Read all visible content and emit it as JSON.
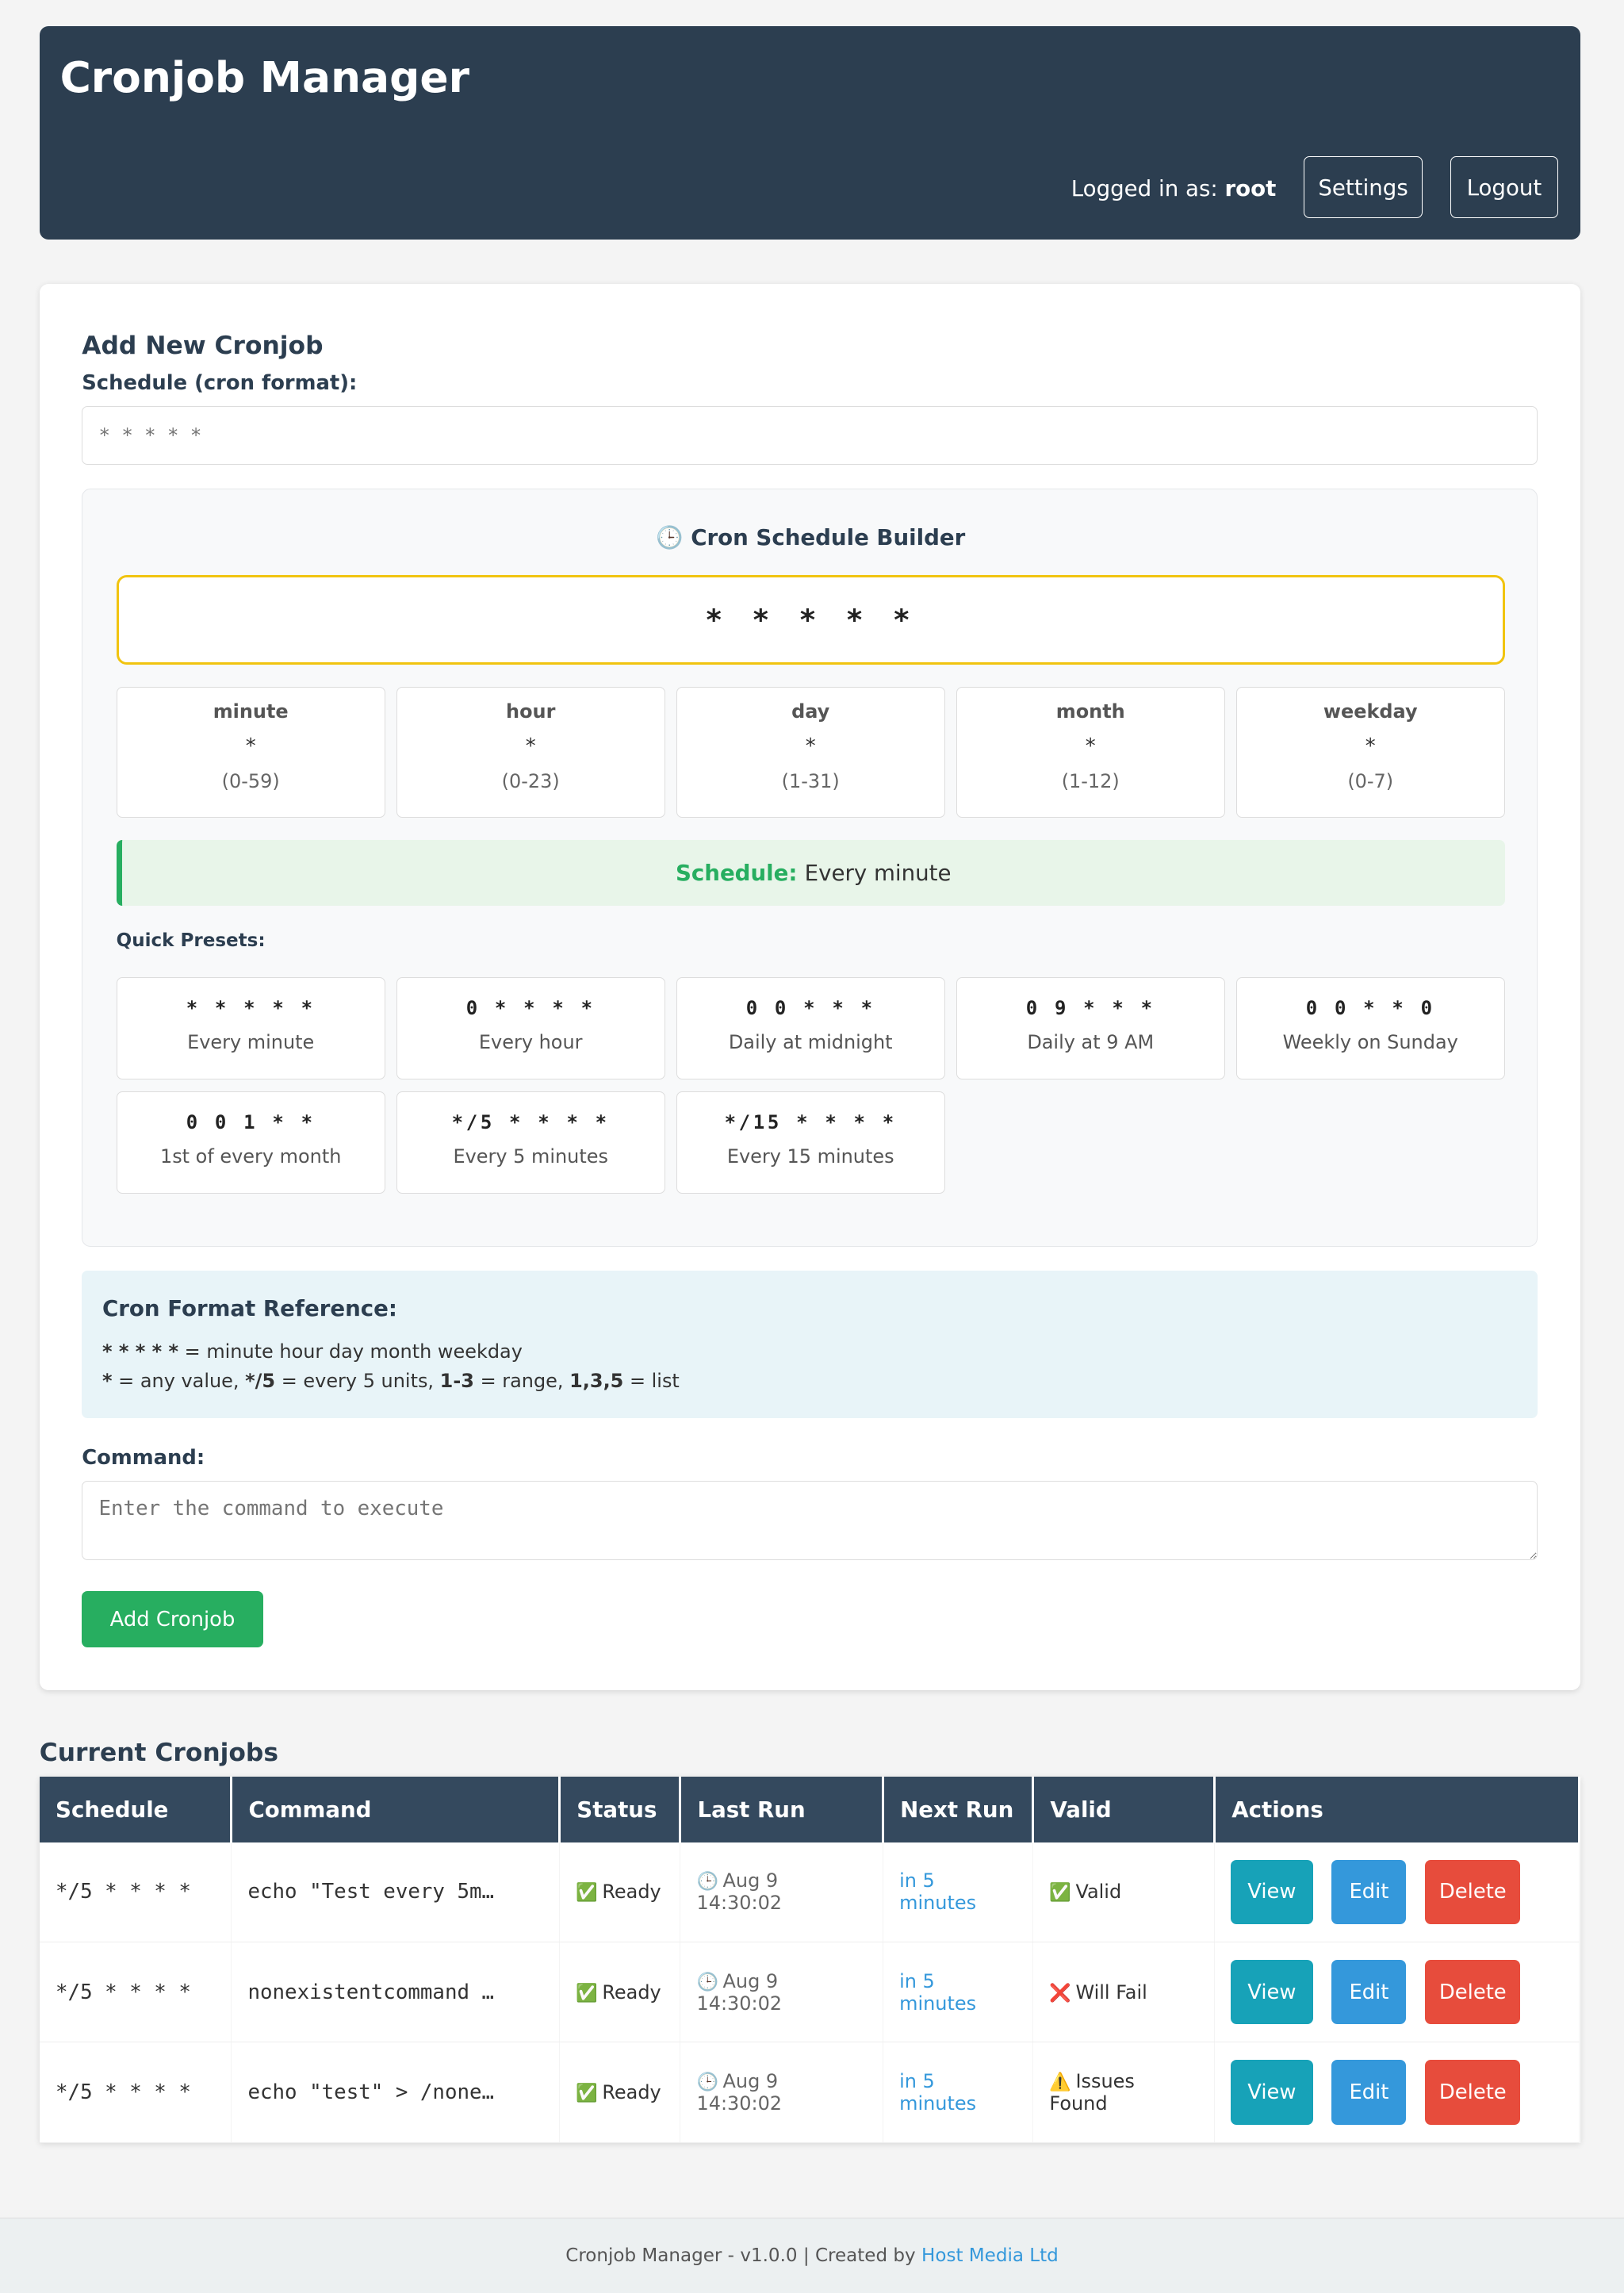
{
  "header": {
    "title": "Cronjob Manager",
    "logged_in_label": "Logged in as:",
    "username": "root",
    "settings": "Settings",
    "logout": "Logout"
  },
  "form": {
    "title": "Add New Cronjob",
    "schedule_label": "Schedule (cron format):",
    "schedule_placeholder": "* * * * *",
    "builder": {
      "icon": "clock-icon",
      "title": "Cron Schedule Builder",
      "expression": "* * * * *",
      "fields": [
        {
          "name": "minute",
          "value": "*",
          "range": "(0-59)"
        },
        {
          "name": "hour",
          "value": "*",
          "range": "(0-23)"
        },
        {
          "name": "day",
          "value": "*",
          "range": "(1-31)"
        },
        {
          "name": "month",
          "value": "*",
          "range": "(1-12)"
        },
        {
          "name": "weekday",
          "value": "*",
          "range": "(0-7)"
        }
      ],
      "schedule_label": "Schedule:",
      "schedule_text": "Every minute",
      "presets_label": "Quick Presets:",
      "presets": [
        {
          "cron": "* * * * *",
          "label": "Every minute"
        },
        {
          "cron": "0 * * * *",
          "label": "Every hour"
        },
        {
          "cron": "0 0 * * *",
          "label": "Daily at midnight"
        },
        {
          "cron": "0 9 * * *",
          "label": "Daily at 9 AM"
        },
        {
          "cron": "0 0 * * 0",
          "label": "Weekly on Sunday"
        },
        {
          "cron": "0 0 1 * *",
          "label": "1st of every month"
        },
        {
          "cron": "*/5 * * * *",
          "label": "Every 5 minutes"
        },
        {
          "cron": "*/15 * * * *",
          "label": "Every 15 minutes"
        }
      ]
    },
    "reference": {
      "title": "Cron Format Reference:",
      "line1_code": "* * * * *",
      "line1_text": " = minute hour day month weekday",
      "l2a": "*",
      "l2b": " = any value, ",
      "l2c": "*/5",
      "l2d": " = every 5 units, ",
      "l2e": "1-3",
      "l2f": " = range, ",
      "l2g": "1,3,5",
      "l2h": " = list"
    },
    "command_label": "Command:",
    "command_placeholder": "Enter the command to execute",
    "submit": "Add Cronjob"
  },
  "jobs": {
    "title": "Current Cronjobs",
    "columns": [
      "Schedule",
      "Command",
      "Status",
      "Last Run",
      "Next Run",
      "Valid",
      "Actions"
    ],
    "rows": [
      {
        "schedule": "*/5 * * * *",
        "command": "echo \"Test every 5m…",
        "status": "Ready",
        "last_run": "Aug 9 14:30:02",
        "next_run": "in 5 minutes",
        "valid_icon": "✅",
        "valid": "Valid"
      },
      {
        "schedule": "*/5 * * * *",
        "command": "nonexistentcommand …",
        "status": "Ready",
        "last_run": "Aug 9 14:30:02",
        "next_run": "in 5 minutes",
        "valid_icon": "❌",
        "valid": "Will Fail"
      },
      {
        "schedule": "*/5 * * * *",
        "command": "echo \"test\" > /none…",
        "status": "Ready",
        "last_run": "Aug 9 14:30:02",
        "next_run": "in 5 minutes",
        "valid_icon": "⚠️",
        "valid": "Issues Found"
      }
    ],
    "actions": {
      "view": "View",
      "edit": "Edit",
      "delete": "Delete"
    }
  },
  "footer": {
    "text": "Cronjob Manager - v1.0.0 | Created by",
    "link": "Host Media Ltd"
  },
  "colors": {
    "header": "#2c3e50",
    "green": "#27ae60",
    "view": "#17a2b8",
    "edit": "#3498db",
    "delete": "#e74c3c",
    "highlight": "#f1c40f"
  }
}
